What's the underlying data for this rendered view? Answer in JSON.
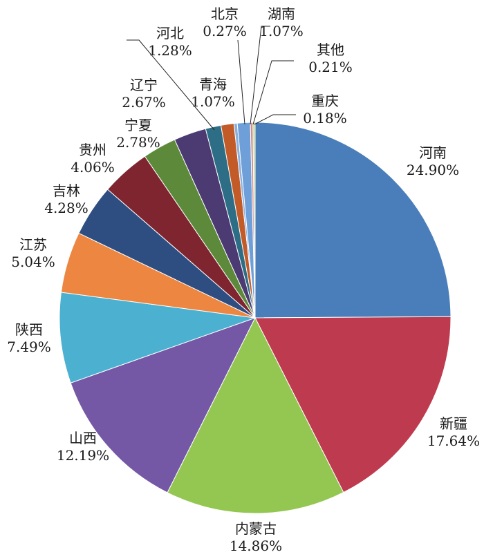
{
  "chart_data": {
    "type": "pie",
    "slices": [
      {
        "name": "河南",
        "value": 24.9,
        "label": "24.90%",
        "color": "#4a7ebb"
      },
      {
        "name": "新疆",
        "value": 17.64,
        "label": "17.64%",
        "color": "#be3a4e"
      },
      {
        "name": "内蒙古",
        "value": 14.86,
        "label": "14.86%",
        "color": "#93c751"
      },
      {
        "name": "山西",
        "value": 12.19,
        "label": "12.19%",
        "color": "#7458a6"
      },
      {
        "name": "陕西",
        "value": 7.49,
        "label": "7.49%",
        "color": "#4cb1d1"
      },
      {
        "name": "江苏",
        "value": 5.04,
        "label": "5.04%",
        "color": "#ec8640"
      },
      {
        "name": "吉林",
        "value": 4.28,
        "label": "4.28%",
        "color": "#2e4e82"
      },
      {
        "name": "贵州",
        "value": 4.06,
        "label": "4.06%",
        "color": "#7e2530"
      },
      {
        "name": "宁夏",
        "value": 2.78,
        "label": "2.78%",
        "color": "#5c8a3a"
      },
      {
        "name": "辽宁",
        "value": 2.67,
        "label": "2.67%",
        "color": "#4c3a72"
      },
      {
        "name": "河北",
        "value": 1.28,
        "label": "1.28%",
        "color": "#2d6e86"
      },
      {
        "name": "青海",
        "value": 1.07,
        "label": "1.07%",
        "color": "#c25b27"
      },
      {
        "name": "北京",
        "value": 0.27,
        "label": "0.27%",
        "color": "#8ab0e0"
      },
      {
        "name": "湖南",
        "value": 1.07,
        "label": "1.07%",
        "color": "#6f9fd8"
      },
      {
        "name": "其他",
        "value": 0.21,
        "label": "0.21%",
        "color": "#d98d8d"
      },
      {
        "name": "重庆",
        "value": 0.18,
        "label": "0.18%",
        "color": "#b8d98c"
      }
    ],
    "title": "",
    "legend": "none"
  }
}
